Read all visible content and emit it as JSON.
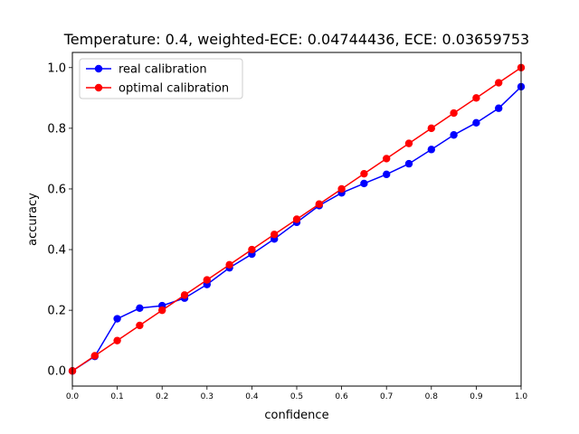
{
  "chart_data": {
    "type": "line",
    "title": "Temperature: 0.4, weighted-ECE: 0.04744436, ECE: 0.03659753",
    "xlabel": "confidence",
    "ylabel": "accuracy",
    "xlim": [
      0,
      1
    ],
    "ylim": [
      -0.05,
      1.05
    ],
    "x_ticks": [
      "0.0",
      "0.1",
      "0.2",
      "0.3",
      "0.4",
      "0.5",
      "0.6",
      "0.7",
      "0.8",
      "0.9",
      "1.0"
    ],
    "y_ticks": [
      "0.0",
      "0.2",
      "0.4",
      "0.6",
      "0.8",
      "1.0"
    ],
    "x_tick_values": [
      0,
      0.1,
      0.2,
      0.3,
      0.4,
      0.5,
      0.6,
      0.7,
      0.8,
      0.9,
      1.0
    ],
    "y_tick_values": [
      0,
      0.2,
      0.4,
      0.6,
      0.8,
      1.0
    ],
    "grid": false,
    "legend_position": "top-left",
    "x": [
      0,
      0.05,
      0.1,
      0.15,
      0.2,
      0.25,
      0.3,
      0.35,
      0.4,
      0.45,
      0.5,
      0.55,
      0.6,
      0.65,
      0.7,
      0.75,
      0.8,
      0.85,
      0.9,
      0.95,
      1.0
    ],
    "series": [
      {
        "name": "real calibration",
        "color": "#0000ff",
        "values": [
          0.0,
          0.048,
          0.172,
          0.207,
          0.215,
          0.24,
          0.285,
          0.34,
          0.385,
          0.435,
          0.49,
          0.545,
          0.587,
          0.618,
          0.648,
          0.683,
          0.73,
          0.778,
          0.818,
          0.866,
          0.937
        ]
      },
      {
        "name": "optimal calibration",
        "color": "#ff0000",
        "values": [
          0.0,
          0.05,
          0.1,
          0.15,
          0.2,
          0.25,
          0.3,
          0.35,
          0.4,
          0.45,
          0.5,
          0.55,
          0.6,
          0.65,
          0.7,
          0.75,
          0.8,
          0.85,
          0.9,
          0.95,
          1.0
        ]
      }
    ]
  }
}
